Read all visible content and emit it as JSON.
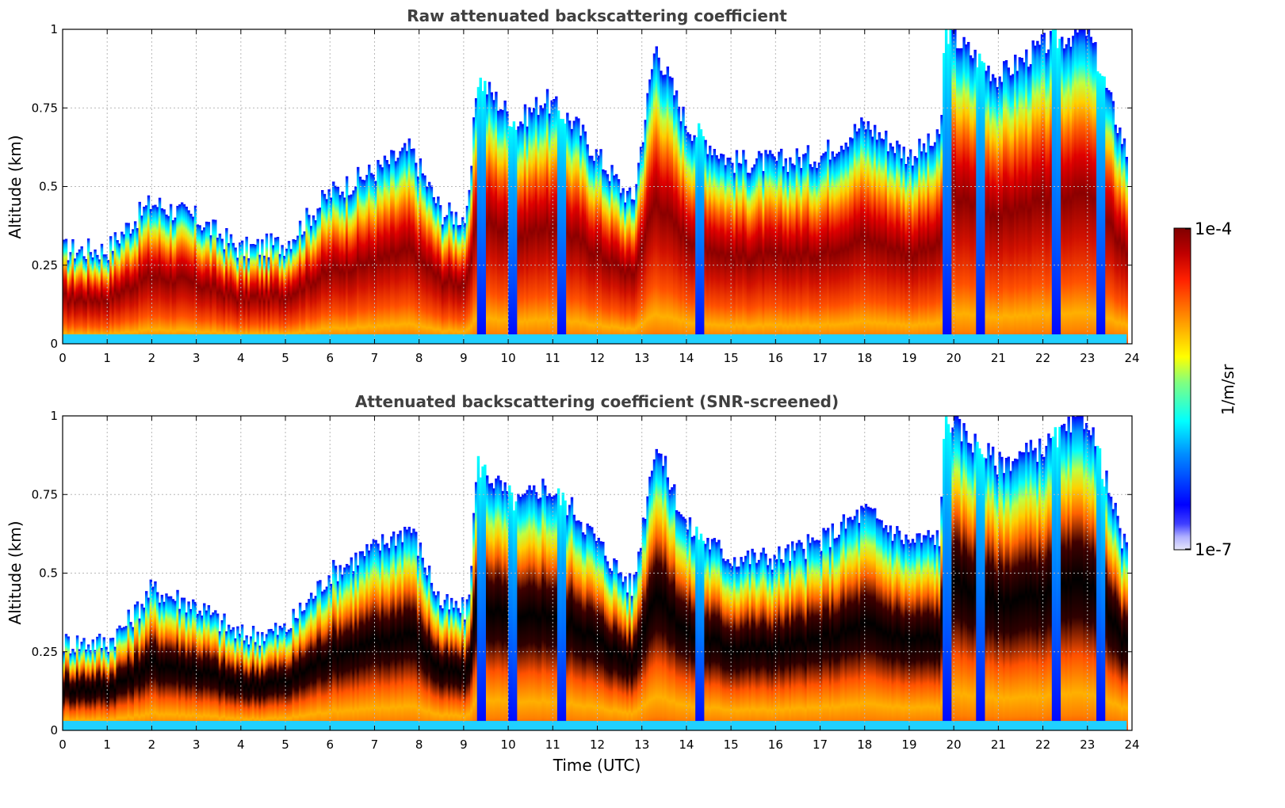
{
  "chart_data": [
    {
      "type": "heatmap",
      "title": "Raw attenuated backscattering coefficient",
      "xlabel": "",
      "ylabel": "Altitude (km)",
      "xlim": [
        0,
        24
      ],
      "ylim": [
        0,
        1
      ],
      "x_ticks": [
        "0",
        "1",
        "2",
        "3",
        "4",
        "5",
        "6",
        "7",
        "8",
        "9",
        "10",
        "11",
        "12",
        "13",
        "14",
        "15",
        "16",
        "17",
        "18",
        "19",
        "20",
        "21",
        "22",
        "23",
        "24"
      ],
      "y_ticks": [
        "0",
        "0.25",
        "0.5",
        "0.75",
        "1"
      ],
      "grid": true,
      "screened": false,
      "layer_top_km": [
        [
          0,
          0.3
        ],
        [
          1,
          0.3
        ],
        [
          1.5,
          0.38
        ],
        [
          2,
          0.45
        ],
        [
          3,
          0.4
        ],
        [
          4,
          0.3
        ],
        [
          5,
          0.32
        ],
        [
          6,
          0.48
        ],
        [
          7,
          0.55
        ],
        [
          7.8,
          0.62
        ],
        [
          8.5,
          0.42
        ],
        [
          9.1,
          0.4
        ],
        [
          9.3,
          0.85
        ],
        [
          10.2,
          0.7
        ],
        [
          10.8,
          0.78
        ],
        [
          11.5,
          0.7
        ],
        [
          12,
          0.6
        ],
        [
          12.8,
          0.45
        ],
        [
          13.3,
          0.95
        ],
        [
          14,
          0.7
        ],
        [
          15,
          0.58
        ],
        [
          16,
          0.58
        ],
        [
          17,
          0.6
        ],
        [
          18,
          0.7
        ],
        [
          19,
          0.6
        ],
        [
          19.7,
          0.65
        ],
        [
          19.8,
          1.0
        ],
        [
          21,
          0.85
        ],
        [
          22,
          0.95
        ],
        [
          23,
          1.0
        ],
        [
          23.9,
          0.6
        ]
      ],
      "layer_core_km": [
        [
          0,
          0.13
        ],
        [
          1,
          0.13
        ],
        [
          2,
          0.2
        ],
        [
          3,
          0.18
        ],
        [
          4,
          0.16
        ],
        [
          5,
          0.18
        ],
        [
          6,
          0.25
        ],
        [
          7,
          0.35
        ],
        [
          7.6,
          0.48
        ],
        [
          8.5,
          0.25
        ],
        [
          9.5,
          0.6
        ],
        [
          10.2,
          0.4
        ],
        [
          10.7,
          0.62
        ],
        [
          11.3,
          0.55
        ],
        [
          12,
          0.28
        ],
        [
          13,
          0.45
        ],
        [
          13.5,
          0.7
        ],
        [
          14,
          0.45
        ],
        [
          15,
          0.3
        ],
        [
          16,
          0.3
        ],
        [
          17,
          0.3
        ],
        [
          18,
          0.28
        ],
        [
          19,
          0.25
        ],
        [
          19.9,
          0.6
        ],
        [
          21,
          0.45
        ],
        [
          22,
          0.45
        ],
        [
          23,
          0.6
        ],
        [
          23.9,
          0.3
        ]
      ],
      "clear_columns_utc": [
        9.4,
        10.1,
        11.2,
        14.3,
        19.85,
        20.6,
        22.3,
        23.3
      ]
    },
    {
      "type": "heatmap",
      "title": "Attenuated backscattering coefficient (SNR-screened)",
      "xlabel": "Time (UTC)",
      "ylabel": "Altitude (km)",
      "xlim": [
        0,
        24
      ],
      "ylim": [
        0,
        1
      ],
      "x_ticks": [
        "0",
        "1",
        "2",
        "3",
        "4",
        "5",
        "6",
        "7",
        "8",
        "9",
        "10",
        "11",
        "12",
        "13",
        "14",
        "15",
        "16",
        "17",
        "18",
        "19",
        "20",
        "21",
        "22",
        "23",
        "24"
      ],
      "y_ticks": [
        "0",
        "0.25",
        "0.5",
        "0.75",
        "1"
      ],
      "grid": true,
      "screened": true,
      "layer_top_km": [
        [
          0,
          0.28
        ],
        [
          1,
          0.28
        ],
        [
          1.5,
          0.35
        ],
        [
          2,
          0.45
        ],
        [
          3,
          0.4
        ],
        [
          4,
          0.3
        ],
        [
          5,
          0.32
        ],
        [
          6,
          0.5
        ],
        [
          7,
          0.58
        ],
        [
          7.8,
          0.65
        ],
        [
          8.5,
          0.4
        ],
        [
          9.1,
          0.38
        ],
        [
          9.3,
          0.85
        ],
        [
          10.2,
          0.72
        ],
        [
          10.8,
          0.78
        ],
        [
          11.5,
          0.7
        ],
        [
          12,
          0.6
        ],
        [
          12.8,
          0.45
        ],
        [
          13.3,
          0.92
        ],
        [
          14,
          0.65
        ],
        [
          15,
          0.55
        ],
        [
          16,
          0.55
        ],
        [
          17,
          0.6
        ],
        [
          18,
          0.7
        ],
        [
          19,
          0.6
        ],
        [
          19.7,
          0.62
        ],
        [
          19.8,
          1.0
        ],
        [
          21,
          0.85
        ],
        [
          22,
          0.9
        ],
        [
          23,
          1.0
        ],
        [
          23.9,
          0.55
        ]
      ],
      "layer_core_km": [
        [
          0,
          0.13
        ],
        [
          1,
          0.13
        ],
        [
          2,
          0.2
        ],
        [
          3,
          0.18
        ],
        [
          4,
          0.16
        ],
        [
          5,
          0.18
        ],
        [
          6,
          0.25
        ],
        [
          7,
          0.35
        ],
        [
          7.6,
          0.48
        ],
        [
          8.5,
          0.25
        ],
        [
          9.5,
          0.6
        ],
        [
          10.2,
          0.4
        ],
        [
          10.7,
          0.62
        ],
        [
          11.3,
          0.55
        ],
        [
          12,
          0.28
        ],
        [
          13,
          0.45
        ],
        [
          13.5,
          0.7
        ],
        [
          14,
          0.45
        ],
        [
          15,
          0.3
        ],
        [
          16,
          0.3
        ],
        [
          17,
          0.3
        ],
        [
          18,
          0.28
        ],
        [
          19,
          0.25
        ],
        [
          19.9,
          0.6
        ],
        [
          21,
          0.45
        ],
        [
          22,
          0.45
        ],
        [
          23,
          0.6
        ],
        [
          23.9,
          0.3
        ]
      ],
      "clear_columns_utc": [
        9.4,
        10.1,
        11.2,
        14.3,
        19.85,
        20.6,
        22.3,
        23.3
      ]
    }
  ],
  "colorbar": {
    "label": "1/m/sr",
    "min_label": "1e-7",
    "max_label": "1e-4",
    "scale": "log"
  }
}
